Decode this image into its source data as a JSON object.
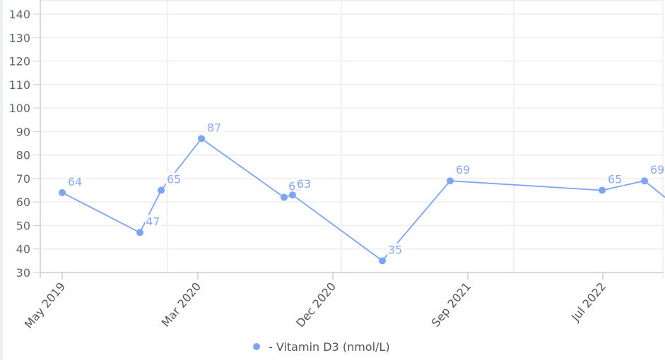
{
  "chart_data": {
    "type": "line",
    "title": "",
    "xlabel": "",
    "ylabel": "",
    "ylim": [
      30,
      140
    ],
    "yticks": [
      30,
      40,
      50,
      60,
      70,
      80,
      90,
      100,
      110,
      120,
      130,
      140
    ],
    "xtick_labels": [
      "May 2019",
      "Mar 2020",
      "Dec 2020",
      "Sep 2021",
      "Jul 2022"
    ],
    "grid": true,
    "legend_position": "bottom",
    "series": [
      {
        "name": "- Vitamin D3 (nmol/L)",
        "color": "#7ea5f5",
        "points": [
          {
            "x": "May 2019",
            "y": 64
          },
          {
            "x": "Jan 2020",
            "y": 47
          },
          {
            "x": "Feb 2020",
            "y": 65
          },
          {
            "x": "Apr 2020",
            "y": 87
          },
          {
            "x": "Sep 2020",
            "y": 62
          },
          {
            "x": "Sep 2020",
            "y": 63
          },
          {
            "x": "Apr 2021",
            "y": 35
          },
          {
            "x": "Aug 2021",
            "y": 69
          },
          {
            "x": "Jul 2022",
            "y": 65
          },
          {
            "x": "Sep 2022",
            "y": 69
          }
        ],
        "values": [
          64,
          47,
          65,
          87,
          62,
          63,
          35,
          69,
          65,
          69
        ]
      }
    ]
  },
  "legend": {
    "label": "- Vitamin D3 (nmol/L)"
  },
  "colors": {
    "series": "#7ea5f5",
    "label": "#8aaaf0",
    "grid": "#eeeeee",
    "axis": "#cccccc",
    "left_strip": "#eeeefb"
  }
}
